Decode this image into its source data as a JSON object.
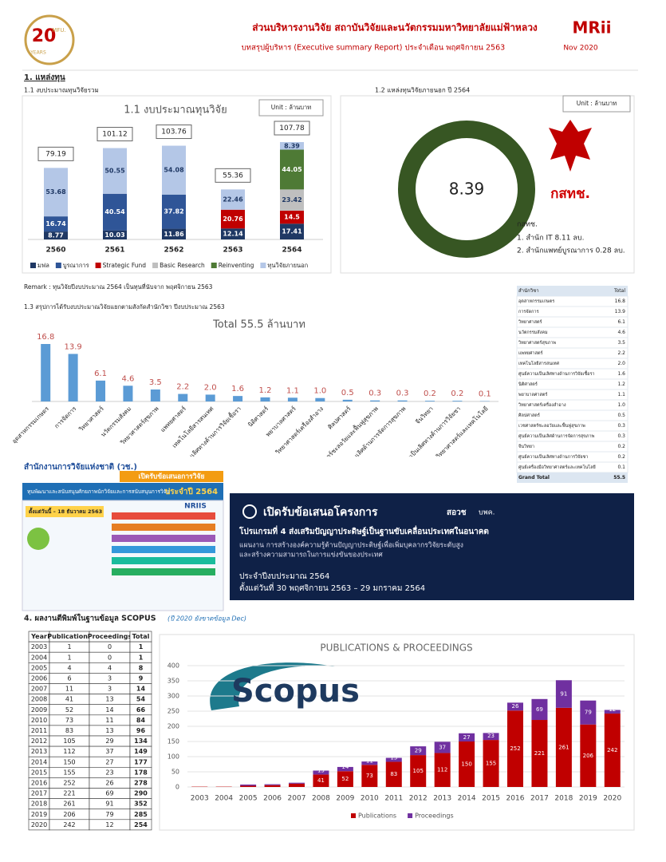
{
  "header": {
    "title": "ส่วนบริหารงานวิจัย สถาบันวิจัยและนวัตกรรมมหาวิทยาลัยแม่ฟ้าหลวง",
    "subtitle": "บทสรุปผู้บริหาร (Executive summary Report) ประจำเดือน พฤศจิกายน 2563",
    "date": "Nov 2020",
    "logo_left": [
      "20",
      "YEARS",
      "MFU."
    ],
    "logo_right": "MRii"
  },
  "sections": {
    "s1": "1. แหล่งทุน",
    "s11": "1.1 งบประมาณทุนวิจัยรวม",
    "s12": "1.2 แหล่งทุนวิจัยภายนอก ปี 2564",
    "remark": "Remark : ทุนวิจัยปีงบประมาณ 2564 เป็นทุนที่นับจาก พฤศจิกายน 2563",
    "s13": "1.3 สรุปการได้รับงบประมาณวิจัยแยกตามสังกัดสำนักวิชา ปีงบประมาณ 2563",
    "s4": "4. ผลงานตีพิมพ์ในฐานข้อมูล SCOPUS",
    "s4note": "(ปี 2020 ยังขาดข้อมูล Dec)"
  },
  "chart_data": [
    {
      "type": "stacked_bar",
      "title": "1.1 งบประมาณทุนวิจัย",
      "unit": "Unit : ล้านบาท",
      "categories": [
        "2560",
        "2561",
        "2562",
        "2563",
        "2564"
      ],
      "series": [
        {
          "name": "มฟล",
          "color": "#1f3864",
          "values": [
            8.77,
            10.03,
            11.86,
            12.14,
            17.41
          ]
        },
        {
          "name": "บูรณาการ",
          "color": "#2f5597",
          "values": [
            16.74,
            40.54,
            37.82,
            null,
            null
          ]
        },
        {
          "name": "Strategic Fund",
          "color": "#c00000",
          "values": [
            null,
            null,
            null,
            20.76,
            14.5
          ]
        },
        {
          "name": "Basic Research",
          "color": "#bfbfbf",
          "values": [
            null,
            null,
            null,
            null,
            23.42
          ]
        },
        {
          "name": "Reinventing",
          "color": "#4e7a35",
          "values": [
            null,
            null,
            null,
            null,
            44.05
          ]
        },
        {
          "name": "ทุนวิจัยภายนอก",
          "color": "#b4c7e7",
          "values": [
            53.68,
            50.55,
            54.08,
            22.46,
            8.39
          ]
        }
      ],
      "totals": [
        79.19,
        101.12,
        103.76,
        55.36,
        107.78
      ]
    },
    {
      "type": "donut",
      "unit": "Unit : ล้านบาท",
      "value": 8.39,
      "color": "#375623",
      "logo_text": "กสทช.",
      "source": "กสทช.",
      "items": [
        "1. สำนัก IT 8.11 ลบ.",
        "2. สำนักแพทย์บูรณาการ 0.28 ลบ."
      ]
    },
    {
      "type": "bar",
      "title": "Total 55.5 ล้านบาท",
      "color": "#5b9bd5",
      "label_color": "#c0504d",
      "categories": [
        "อุตสาหกรรมเกษตร",
        "การจัดการ",
        "วิทยาศาสตร์",
        "นวัตกรรมสังคม",
        "วิทยาศาสตร์สุขภาพ",
        "แพทยศาสตร์",
        "เทคโนโลยีสารสนเทศ",
        "ศูนย์ความเป็นเลิศทางด้านการวิจัยเชื้อรา",
        "นิติศาสตร์",
        "พยาบาลศาสตร์",
        "วิทยาศาสตร์เครื่องสำอาง",
        "ศิลปศาสตร์",
        "เวชศาสตร์ชะลอวัยและฟื้นฟูสุขภาพ",
        "ศูนย์ความเป็นเลิศด้านการจัดการสุขภาพ",
        "จีนวิทยา",
        "ศูนย์ความเป็นเลิศทางด้านการวิจัยชา",
        "ศูนย์เครื่องมือวิทยาศาสตร์และเทคโนโลยี"
      ],
      "values": [
        16.8,
        13.9,
        6.1,
        4.6,
        3.5,
        2.2,
        2.0,
        1.6,
        1.2,
        1.1,
        1.0,
        0.5,
        0.3,
        0.3,
        0.2,
        0.2,
        0.1
      ],
      "value_labels": [
        "16.8",
        "13.9",
        "6.1",
        "4.6",
        "3.5",
        "2.2",
        "2.0",
        "1.6",
        "1.2",
        "1.1",
        "1.0",
        "0.5",
        "0.3",
        "0.3",
        "0.2",
        "0.2",
        "0.1"
      ]
    },
    {
      "type": "stacked_bar",
      "title": "PUBLICATIONS & PROCEEDINGS",
      "categories": [
        "2003",
        "2004",
        "2005",
        "2006",
        "2007",
        "2008",
        "2009",
        "2010",
        "2011",
        "2012",
        "2013",
        "2014",
        "2015",
        "2016",
        "2017",
        "2018",
        "2019",
        "2020"
      ],
      "series": [
        {
          "name": "Publications",
          "color": "#c00000",
          "values": [
            1,
            1,
            4,
            6,
            11,
            41,
            52,
            73,
            83,
            105,
            112,
            150,
            155,
            252,
            221,
            261,
            206,
            242
          ]
        },
        {
          "name": "Proceedings",
          "color": "#7030a0",
          "values": [
            0,
            0,
            4,
            3,
            3,
            13,
            14,
            11,
            13,
            29,
            37,
            27,
            23,
            26,
            69,
            91,
            79,
            12
          ]
        }
      ],
      "ylim": [
        0,
        400
      ],
      "yticks": [
        0,
        50,
        100,
        150,
        200,
        250,
        300,
        350,
        400
      ],
      "grid": true,
      "logo_text": "Scopus"
    }
  ],
  "faculty_table": {
    "header": [
      "สำนักวิชา",
      "Total"
    ],
    "grand_total": [
      "Grand Total",
      55.5
    ]
  },
  "pub_table": {
    "header": [
      "Year",
      "Publications",
      "Proceedings",
      "Total"
    ],
    "rows": [
      [
        2003,
        1,
        0,
        1
      ],
      [
        2004,
        1,
        0,
        1
      ],
      [
        2005,
        4,
        4,
        8
      ],
      [
        2006,
        6,
        3,
        9
      ],
      [
        2007,
        11,
        3,
        14
      ],
      [
        2008,
        41,
        13,
        54
      ],
      [
        2009,
        52,
        14,
        66
      ],
      [
        2010,
        73,
        11,
        84
      ],
      [
        2011,
        83,
        13,
        96
      ],
      [
        2012,
        105,
        29,
        134
      ],
      [
        2013,
        112,
        37,
        149
      ],
      [
        2014,
        150,
        27,
        177
      ],
      [
        2015,
        155,
        23,
        178
      ],
      [
        2016,
        252,
        26,
        278
      ],
      [
        2017,
        221,
        69,
        290
      ],
      [
        2018,
        261,
        91,
        352
      ],
      [
        2019,
        206,
        79,
        285
      ],
      [
        2020,
        242,
        12,
        254
      ]
    ]
  },
  "banners": {
    "nrct_title": "สำนักงานการวิจัยแห่งชาติ (วช.)",
    "nrct_ribbon": "เปิดรับข้อเสนอการวิจัย",
    "nrct_head": "ทุนพัฒนาและสนับสนุนศักยภาพนักวิจัยและการสนับสนุนการวิจัย",
    "nrct_year": "ประจำปี 2564",
    "nrct_date": "ตั้งแต่วันนี้ – 18 ธันวาคม 2563",
    "nrct_system": "NRIIS",
    "ai_title": "เปิดรับข้อเสนอโครงการ",
    "ai_org1": "สอวช",
    "ai_org2": "บพค.",
    "ai_program": "โปรแกรมที่ 4 ส่งเสริมปัญญาประดิษฐ์เป็นฐานขับเคลื่อนประเทศในอนาคต",
    "ai_plan1": "แผนงาน การสร้างองค์ความรู้ด้านปัญญาประดิษฐ์เพื่อเพิ่มบุคลากรวิจัยระดับสูง",
    "ai_plan2": "และสร้างความสามารถในการแข่งขันของประเทศ",
    "ai_year": "ประจำปีงบประมาณ 2564",
    "ai_date": "ตั้งแต่วันที่ 30 พฤศจิกายน 2563 – 29 มกราคม 2564"
  }
}
